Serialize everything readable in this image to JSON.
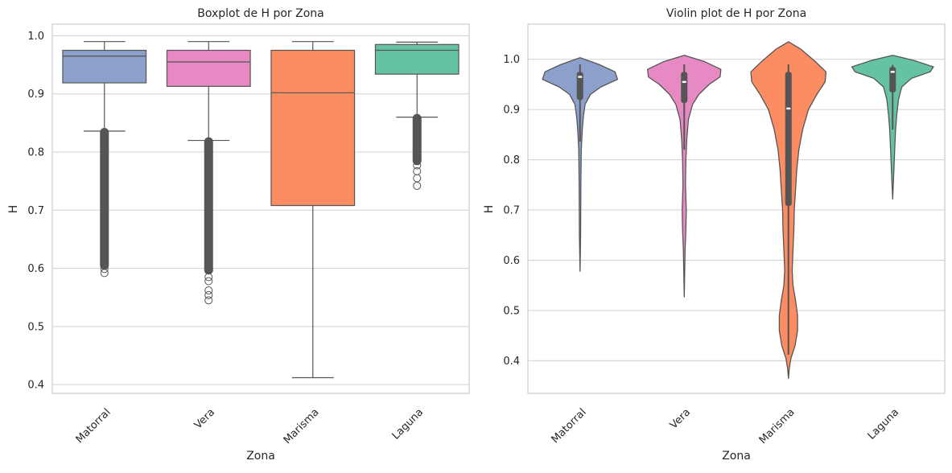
{
  "chart_data": [
    {
      "type": "boxplot",
      "title": "Boxplot de H por Zona",
      "xlabel": "Zona",
      "ylabel": "H",
      "ylim": [
        0.385,
        1.02
      ],
      "yticks": [
        "0.4",
        "0.5",
        "0.6",
        "0.7",
        "0.8",
        "0.9",
        "1.0"
      ],
      "grid": true,
      "categories": [
        "Matorral",
        "Vera",
        "Marisma",
        "Laguna"
      ],
      "colors": [
        "#8da0cb",
        "#e78ac3",
        "#fc8d62",
        "#66c2a5"
      ],
      "boxes": [
        {
          "q1": 0.919,
          "median": 0.965,
          "q3": 0.975,
          "whisker_low": 0.836,
          "whisker_high": 0.99,
          "outlier_band": [
            0.603,
            0.836
          ],
          "outliers": [
            0.599,
            0.592
          ]
        },
        {
          "q1": 0.913,
          "median": 0.955,
          "q3": 0.975,
          "whisker_low": 0.82,
          "whisker_high": 0.99,
          "outlier_band": [
            0.595,
            0.82
          ],
          "outliers": [
            0.585,
            0.578,
            0.562,
            0.554,
            0.545
          ]
        },
        {
          "q1": 0.708,
          "median": 0.902,
          "q3": 0.975,
          "whisker_low": 0.412,
          "whisker_high": 0.99,
          "outlier_band": null,
          "outliers": []
        },
        {
          "q1": 0.934,
          "median": 0.975,
          "q3": 0.985,
          "whisker_low": 0.86,
          "whisker_high": 0.989,
          "outlier_band": [
            0.783,
            0.86
          ],
          "outliers": [
            0.777,
            0.767,
            0.755,
            0.742
          ]
        }
      ]
    },
    {
      "type": "violin",
      "title": "Violin plot de H por Zona",
      "xlabel": "Zona",
      "ylabel": "H",
      "ylim": [
        0.335,
        1.07
      ],
      "yticks": [
        "0.4",
        "0.5",
        "0.6",
        "0.7",
        "0.8",
        "0.9",
        "1.0"
      ],
      "grid": true,
      "categories": [
        "Matorral",
        "Vera",
        "Marisma",
        "Laguna"
      ],
      "colors": [
        "#8da0cb",
        "#e78ac3",
        "#fc8d62",
        "#66c2a5"
      ],
      "violins": [
        {
          "profile": [
            [
              1.003,
              0.0
            ],
            [
              0.99,
              0.45
            ],
            [
              0.975,
              0.84
            ],
            [
              0.96,
              0.9
            ],
            [
              0.945,
              0.5
            ],
            [
              0.93,
              0.25
            ],
            [
              0.91,
              0.12
            ],
            [
              0.885,
              0.08
            ],
            [
              0.86,
              0.055
            ],
            [
              0.82,
              0.03
            ],
            [
              0.75,
              0.02
            ],
            [
              0.65,
              0.015
            ],
            [
              0.578,
              0.0
            ]
          ],
          "q1": 0.919,
          "median": 0.965,
          "q3": 0.975,
          "whisker_low": 0.836,
          "whisker_high": 0.99
        },
        {
          "profile": [
            [
              1.008,
              0.0
            ],
            [
              0.995,
              0.5
            ],
            [
              0.98,
              0.88
            ],
            [
              0.965,
              0.86
            ],
            [
              0.95,
              0.6
            ],
            [
              0.93,
              0.35
            ],
            [
              0.91,
              0.2
            ],
            [
              0.88,
              0.1
            ],
            [
              0.84,
              0.06
            ],
            [
              0.8,
              0.04
            ],
            [
              0.75,
              0.03
            ],
            [
              0.7,
              0.05
            ],
            [
              0.66,
              0.04
            ],
            [
              0.62,
              0.02
            ],
            [
              0.527,
              0.0
            ]
          ],
          "q1": 0.913,
          "median": 0.955,
          "q3": 0.975,
          "whisker_low": 0.82,
          "whisker_high": 0.99
        },
        {
          "profile": [
            [
              1.035,
              0.0
            ],
            [
              1.02,
              0.3
            ],
            [
              0.995,
              0.65
            ],
            [
              0.975,
              0.9
            ],
            [
              0.955,
              0.88
            ],
            [
              0.93,
              0.68
            ],
            [
              0.9,
              0.48
            ],
            [
              0.86,
              0.34
            ],
            [
              0.82,
              0.25
            ],
            [
              0.78,
              0.2
            ],
            [
              0.74,
              0.17
            ],
            [
              0.7,
              0.14
            ],
            [
              0.66,
              0.13
            ],
            [
              0.62,
              0.11
            ],
            [
              0.58,
              0.09
            ],
            [
              0.55,
              0.11
            ],
            [
              0.52,
              0.17
            ],
            [
              0.49,
              0.22
            ],
            [
              0.46,
              0.22
            ],
            [
              0.43,
              0.16
            ],
            [
              0.405,
              0.06
            ],
            [
              0.385,
              0.02
            ],
            [
              0.365,
              0.0
            ]
          ],
          "q1": 0.708,
          "median": 0.902,
          "q3": 0.975,
          "whisker_low": 0.412,
          "whisker_high": 0.99
        },
        {
          "profile": [
            [
              1.008,
              0.0
            ],
            [
              0.998,
              0.5
            ],
            [
              0.985,
              0.98
            ],
            [
              0.975,
              0.9
            ],
            [
              0.962,
              0.45
            ],
            [
              0.945,
              0.22
            ],
            [
              0.92,
              0.14
            ],
            [
              0.89,
              0.1
            ],
            [
              0.86,
              0.07
            ],
            [
              0.82,
              0.05
            ],
            [
              0.78,
              0.03
            ],
            [
              0.75,
              0.015
            ],
            [
              0.722,
              0.0
            ]
          ],
          "q1": 0.934,
          "median": 0.975,
          "q3": 0.985,
          "whisker_low": 0.86,
          "whisker_high": 0.989
        }
      ]
    }
  ]
}
